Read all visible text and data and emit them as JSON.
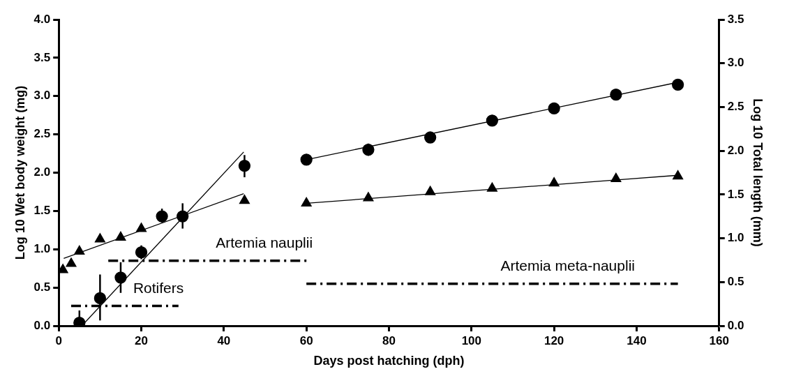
{
  "chart_data": {
    "type": "scatter",
    "xlabel": "Days post hatching (dph)",
    "ylabel": "Log 10 Wet body weight (mg)",
    "y2label": "Log 10 Total length (mm)",
    "xlim": [
      0,
      160
    ],
    "xticks": [
      0,
      20,
      40,
      60,
      80,
      100,
      120,
      140,
      160
    ],
    "ylim": [
      0,
      4
    ],
    "yticks": [
      {
        "value": 0,
        "label": "0.0"
      },
      {
        "value": 0.5,
        "label": "0.5"
      },
      {
        "value": 1,
        "label": "1.0"
      },
      {
        "value": 1.5,
        "label": "1.5"
      },
      {
        "value": 2,
        "label": "2.0"
      },
      {
        "value": 2.5,
        "label": "2.5"
      },
      {
        "value": 3,
        "label": "3.0"
      },
      {
        "value": 3.5,
        "label": "3.5"
      },
      {
        "value": 4,
        "label": "4.0"
      }
    ],
    "y2lim": [
      0,
      3.5
    ],
    "y2ticks": [
      {
        "value": 0,
        "label": "0.0"
      },
      {
        "value": 0.5,
        "label": "0.5"
      },
      {
        "value": 1,
        "label": "1.0"
      },
      {
        "value": 1.5,
        "label": "1.5"
      },
      {
        "value": 2,
        "label": "2.0"
      },
      {
        "value": 2.5,
        "label": "2.5"
      },
      {
        "value": 3,
        "label": "3.0"
      },
      {
        "value": 3.5,
        "label": "3.5"
      }
    ],
    "legend": false,
    "series": [
      {
        "type": "scatter",
        "marker": "circle",
        "color": "#000000",
        "x": [
          5,
          10,
          15,
          20,
          25,
          30,
          45,
          60,
          75,
          90,
          105,
          120,
          135,
          150
        ],
        "values": [
          0.04,
          0.36,
          0.63,
          0.96,
          1.43,
          1.43,
          2.09,
          2.17,
          2.3,
          2.46,
          2.68,
          2.84,
          3.02,
          3.15
        ],
        "errors": [
          [
            0,
            0.2
          ],
          [
            0.07,
            0.67
          ],
          [
            0.43,
            0.83
          ],
          [
            0.87,
            1.05
          ],
          [
            1.35,
            1.53
          ],
          [
            1.27,
            1.6
          ],
          [
            1.94,
            2.23
          ],
          null,
          [
            2.22,
            2.38
          ],
          null,
          null,
          null,
          null,
          null
        ]
      },
      {
        "type": "scatter",
        "marker": "triangle",
        "color": "#000000",
        "axis": "y2",
        "x": [
          1,
          3,
          5,
          10,
          15,
          20,
          30,
          45,
          60,
          75,
          90,
          105,
          120,
          135,
          150
        ],
        "values": [
          0.64,
          0.71,
          0.85,
          0.99,
          1.01,
          1.11,
          null,
          1.43,
          1.4,
          1.46,
          1.53,
          1.57,
          1.63,
          1.68,
          1.71
        ]
      },
      {
        "type": "line",
        "marker": "none",
        "line_style": "solid",
        "color": "#000000",
        "x": [
          5.6,
          44.8
        ],
        "values": [
          0,
          2.27
        ]
      },
      {
        "type": "line",
        "marker": "none",
        "line_style": "solid",
        "color": "#000000",
        "x": [
          60,
          150
        ],
        "values": [
          2.17,
          3.18
        ]
      },
      {
        "type": "line",
        "marker": "none",
        "line_style": "solid",
        "color": "#000000",
        "axis": "y2",
        "x": [
          1.2,
          44.8
        ],
        "values": [
          0.77,
          1.51
        ]
      },
      {
        "type": "line",
        "marker": "none",
        "line_style": "solid",
        "color": "#000000",
        "axis": "y2",
        "x": [
          60,
          150
        ],
        "values": [
          1.4,
          1.72
        ]
      },
      {
        "type": "line",
        "name": "Rotifers",
        "marker": "none",
        "line_style": "dashed",
        "color": "#000000",
        "x": [
          3,
          29
        ],
        "values": [
          0.26,
          0.26
        ]
      },
      {
        "type": "line",
        "name": "Artemia nauplii",
        "marker": "none",
        "line_style": "dashed",
        "color": "#000000",
        "x": [
          12,
          60
        ],
        "values": [
          0.85,
          0.85
        ]
      },
      {
        "type": "line",
        "name": "Artemia meta-nauplii",
        "marker": "none",
        "line_style": "dashed",
        "color": "#000000",
        "x": [
          60,
          150
        ],
        "values": [
          0.55,
          0.55
        ]
      }
    ]
  }
}
